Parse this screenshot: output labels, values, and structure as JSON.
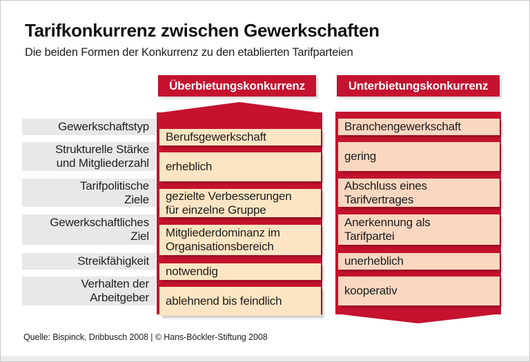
{
  "page": {
    "title": "Tarifkonkurrenz zwischen Gewerkschaften",
    "subtitle": "Die beiden Formen der Konkurrenz zu den etablierten Tarifparteien",
    "source": "Quelle: Bispinck, Dribbusch 2008 | © Hans-Böckler-Stiftung 2008"
  },
  "colors": {
    "accent_red": "#C4122F",
    "left_cell_bg": "#FDE5C3",
    "right_cell_bg": "#FAD7C1",
    "label_bg": "#E8E8E8",
    "text": "#1D1D1B",
    "header_text": "#FFFFFF"
  },
  "table": {
    "col_left_header": "Überbietungskonkurrenz",
    "col_right_header": "Unterbietungskonkurrenz",
    "left_arrow_direction": "up",
    "right_arrow_direction": "down",
    "rows": [
      {
        "label": "Gewerkschaftstyp",
        "left": "Berufsgewerkschaft",
        "right": "Branchengewerkschaft"
      },
      {
        "label": "Strukturelle Stärke\nund Mitgliederzahl",
        "left": "erheblich",
        "right": "gering"
      },
      {
        "label": "Tarifpolitische\nZiele",
        "left": "gezielte Verbesserungen\nfür einzelne Gruppe",
        "right": "Abschluss eines\nTarifvertrages"
      },
      {
        "label": "Gewerkschaftliches\nZiel",
        "left": "Mitgliederdominanz im\nOrganisationsbereich",
        "right": "Anerkennung als\nTarifpartei"
      },
      {
        "label": "Streikfähigkeit",
        "left": "notwendig",
        "right": "unerheblich"
      },
      {
        "label": "Verhalten der\nArbeitgeber",
        "left": "ablehnend bis feindlich",
        "right": "kooperativ"
      }
    ]
  }
}
